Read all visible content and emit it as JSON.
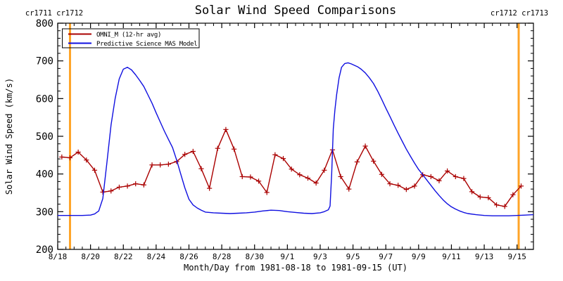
{
  "page": {
    "title": "Solar Wind Speed Comparisons"
  },
  "annotations": {
    "left_cr_label": "cr1711 cr1712",
    "right_cr_label": "cr1712 cr1713"
  },
  "legend": {
    "entries": [
      {
        "label": "OMNI_M (12-hr avg)",
        "color": "#aa0000"
      },
      {
        "label": "Predictive Science MAS Model",
        "color": "#0f0fe0"
      }
    ]
  },
  "colors": {
    "omni": "#aa0000",
    "mas_model": "#0f0fe0",
    "carrington_line": "#ffa428",
    "axis": "#000000",
    "background": "#ffffff"
  },
  "chart_data": {
    "type": "line",
    "title": "Solar Wind Speed Comparisons",
    "xlabel": "Month/Day from 1981-08-18 to 1981-09-15 (UT)",
    "ylabel": "Solar Wind Speed (km/s)",
    "x_unit": "days since 1981-08-18 00:00 UT",
    "xlim_days": [
      0,
      29
    ],
    "ylim": [
      200,
      800
    ],
    "x_major_ticks_days": [
      0,
      2,
      4,
      6,
      8,
      10,
      12,
      14,
      16,
      18,
      20,
      22,
      24,
      26,
      28
    ],
    "x_tick_labels": [
      "8/18",
      "8/20",
      "8/22",
      "8/24",
      "8/26",
      "8/28",
      "8/30",
      "9/1",
      "9/3",
      "9/5",
      "9/7",
      "9/9",
      "9/11",
      "9/13",
      "9/15"
    ],
    "x_minor_step_days": 0.5,
    "y_ticks": [
      200,
      300,
      400,
      500,
      600,
      700,
      800
    ],
    "y_minor_step": 20,
    "grid": false,
    "legend_position": "top-left-inside",
    "vlines": [
      {
        "x_day": 0.75,
        "label": "cr1711 cr1712",
        "color": "#ffa428"
      },
      {
        "x_day": 28.1,
        "label": "cr1712 cr1713",
        "color": "#ffa428"
      }
    ],
    "series": [
      {
        "name": "OMNI_M (12-hr avg)",
        "color": "#aa0000",
        "marker": "plus",
        "x_days": [
          0.25,
          0.75,
          1.25,
          1.75,
          2.25,
          2.75,
          3.25,
          3.75,
          4.25,
          4.75,
          5.25,
          5.75,
          6.25,
          6.75,
          7.25,
          7.75,
          8.25,
          8.75,
          9.25,
          9.75,
          10.25,
          10.75,
          11.25,
          11.75,
          12.25,
          12.75,
          13.25,
          13.75,
          14.25,
          14.75,
          15.25,
          15.75,
          16.25,
          16.75,
          17.25,
          17.75,
          18.25,
          18.75,
          19.25,
          19.75,
          20.25,
          20.75,
          21.25,
          21.75,
          22.25,
          22.75,
          23.25,
          23.75,
          24.25,
          24.75,
          25.25,
          25.75,
          26.25,
          26.75,
          27.25,
          27.75,
          28.25
        ],
        "values": [
          445,
          443,
          458,
          437,
          410,
          352,
          355,
          365,
          368,
          374,
          371,
          424,
          424,
          426,
          433,
          452,
          460,
          414,
          362,
          468,
          518,
          466,
          393,
          392,
          381,
          351,
          451,
          441,
          413,
          398,
          389,
          376,
          410,
          464,
          393,
          360,
          432,
          474,
          434,
          399,
          374,
          370,
          359,
          368,
          398,
          393,
          382,
          408,
          393,
          388,
          353,
          339,
          337,
          318,
          314,
          345,
          368
        ]
      },
      {
        "name": "Predictive Science MAS Model",
        "color": "#0f0fe0",
        "marker": "none",
        "x_days": [
          0,
          0.5,
          1,
          1.5,
          2,
          2.25,
          2.5,
          2.75,
          3,
          3.25,
          3.5,
          3.75,
          4,
          4.25,
          4.5,
          4.75,
          5,
          5.25,
          5.5,
          5.75,
          6,
          6.25,
          6.5,
          6.75,
          7,
          7.25,
          7.5,
          7.75,
          8,
          8.25,
          8.5,
          8.75,
          9,
          9.5,
          10,
          10.5,
          11,
          11.5,
          12,
          12.5,
          13,
          13.5,
          14,
          14.5,
          15,
          15.5,
          16,
          16.25,
          16.5,
          16.6,
          16.7,
          16.8,
          16.9,
          17,
          17.15,
          17.3,
          17.5,
          17.7,
          17.9,
          18.1,
          18.3,
          18.5,
          18.75,
          19,
          19.25,
          19.5,
          19.75,
          20,
          20.25,
          20.5,
          20.75,
          21,
          21.25,
          21.5,
          21.75,
          22,
          22.25,
          22.5,
          22.75,
          23,
          23.25,
          23.5,
          23.75,
          24,
          24.25,
          24.5,
          24.75,
          25,
          25.5,
          26,
          26.5,
          27,
          27.5,
          28,
          28.5,
          29
        ],
        "values": [
          290,
          290,
          290,
          290,
          291,
          294,
          302,
          335,
          430,
          530,
          600,
          652,
          678,
          683,
          676,
          663,
          648,
          632,
          610,
          588,
          562,
          538,
          514,
          492,
          470,
          437,
          400,
          363,
          333,
          318,
          310,
          304,
          299,
          297,
          296,
          295,
          296,
          297,
          299,
          302,
          304,
          303,
          300,
          298,
          296,
          295,
          297,
          300,
          305,
          315,
          400,
          520,
          570,
          610,
          655,
          683,
          693,
          695,
          692,
          688,
          684,
          678,
          668,
          655,
          640,
          620,
          598,
          575,
          553,
          530,
          508,
          487,
          466,
          447,
          429,
          412,
          398,
          384,
          370,
          356,
          343,
          331,
          321,
          313,
          307,
          302,
          298,
          295,
          292,
          290,
          289,
          289,
          289,
          290,
          291,
          292
        ]
      }
    ]
  }
}
